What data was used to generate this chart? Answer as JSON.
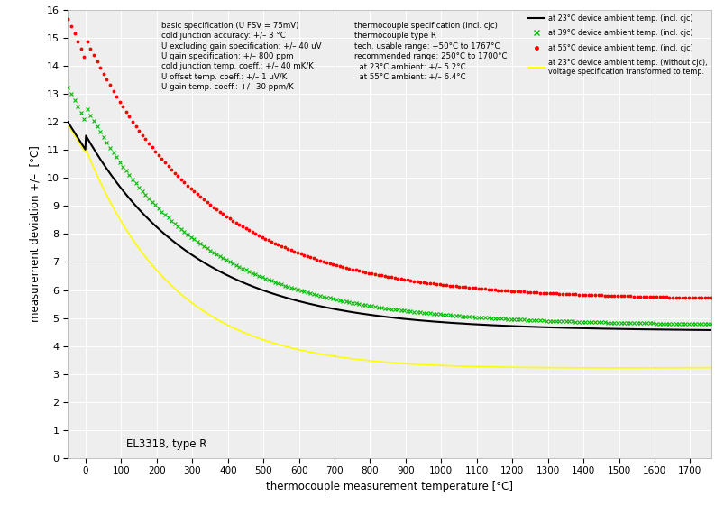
{
  "xlabel": "thermocouple measurement temperature [°C]",
  "ylabel": "measurement deviation +/–  [°C]",
  "xlim": [
    -50,
    1760
  ],
  "ylim": [
    0,
    16
  ],
  "xticks": [
    0,
    100,
    200,
    300,
    400,
    500,
    600,
    700,
    800,
    900,
    1000,
    1100,
    1200,
    1300,
    1400,
    1500,
    1600,
    1700
  ],
  "yticks": [
    0,
    1,
    2,
    3,
    4,
    5,
    6,
    7,
    8,
    9,
    10,
    11,
    12,
    13,
    14,
    15,
    16
  ],
  "annotation": "EL3318, type R",
  "legend_entries": [
    "at 23°C device ambient temp. (incl. cjc)",
    "at 39°C device ambient temp. (incl. cjc)",
    "at 55°C device ambient temp. (incl. cjc)",
    "at 23°C device ambient temp. (without cjc),\nvoltage specification transformed to temp."
  ],
  "text_block1": "basic specification (U FSV = 75mV)\ncold junction accuracy: +/– 3 °C\nU excluding gain specification: +/– 40 uV\nU gain specification: +/– 800 ppm\ncold junction temp. coeff.: +/– 40 mK/K\nU offset temp. coeff.: +/– 1 uV/K\nU gain temp. coeff.: +/– 30 ppm/K",
  "text_block2": "thermocouple specification (incl. cjc)\nthermocouple type R\ntech. usable range: −50°C to 1767°C\nrecommended range: 250°C to 1700°C\n  at 23°C ambient: +/– 5.2°C\n  at 55°C ambient: +/– 6.4°C",
  "figsize": [
    7.93,
    5.61
  ],
  "dpi": 100
}
